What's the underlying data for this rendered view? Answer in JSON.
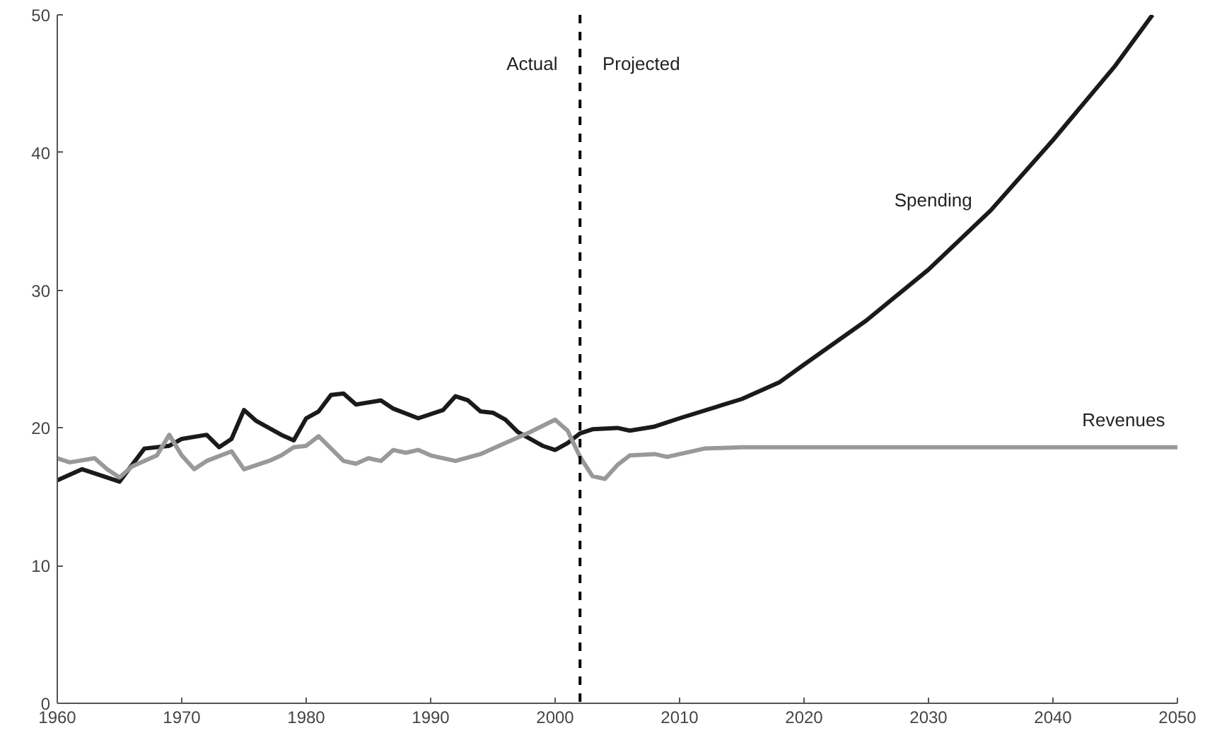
{
  "chart_data": {
    "type": "line",
    "xlim": [
      1960,
      2050
    ],
    "ylim": [
      0,
      50
    ],
    "xticks": [
      1960,
      1970,
      1980,
      1990,
      2000,
      2010,
      2020,
      2030,
      2040,
      2050
    ],
    "yticks": [
      0,
      10,
      20,
      30,
      40,
      50
    ],
    "grid": false,
    "legend": false,
    "line_style": "solid",
    "series": [
      {
        "name": "Spending",
        "color": "#1a1a1a",
        "x": [
          1960,
          1962,
          1965,
          1967,
          1969,
          1970,
          1972,
          1973,
          1974,
          1975,
          1976,
          1978,
          1979,
          1980,
          1981,
          1982,
          1983,
          1984,
          1986,
          1987,
          1989,
          1991,
          1992,
          1993,
          1994,
          1995,
          1996,
          1997,
          1998,
          1999,
          2000,
          2001,
          2002,
          2003,
          2005,
          2006,
          2008,
          2010,
          2015,
          2018,
          2020,
          2025,
          2030,
          2035,
          2040,
          2045,
          2048
        ],
        "values": [
          16.2,
          17,
          16.1,
          18.5,
          18.7,
          19.2,
          19.5,
          18.6,
          19.2,
          21.3,
          20.5,
          19.5,
          19.1,
          20.7,
          21.2,
          22.4,
          22.5,
          21.7,
          22.0,
          21.4,
          20.7,
          21.3,
          22.3,
          22.0,
          21.2,
          21.1,
          20.6,
          19.7,
          19.2,
          18.7,
          18.4,
          18.9,
          19.6,
          19.9,
          20.0,
          19.8,
          20.1,
          20.7,
          22.1,
          23.3,
          24.6,
          27.8,
          31.5,
          35.8,
          40.9,
          46.3,
          50
        ]
      },
      {
        "name": "Revenues",
        "color": "#999999",
        "x": [
          1960,
          1961,
          1963,
          1964,
          1965,
          1966,
          1968,
          1969,
          1970,
          1971,
          1972,
          1974,
          1975,
          1977,
          1978,
          1979,
          1980,
          1981,
          1982,
          1983,
          1984,
          1985,
          1986,
          1987,
          1988,
          1989,
          1990,
          1992,
          1994,
          1996,
          1998,
          2000,
          2001,
          2002,
          2003,
          2004,
          2005,
          2006,
          2008,
          2009,
          2012,
          2015,
          2050
        ],
        "values": [
          17.8,
          17.5,
          17.8,
          17.0,
          16.4,
          17.2,
          18.0,
          19.5,
          18.0,
          17.0,
          17.6,
          18.3,
          17.0,
          17.6,
          18.0,
          18.6,
          18.7,
          19.4,
          18.5,
          17.6,
          17.4,
          17.8,
          17.6,
          18.4,
          18.2,
          18.4,
          18.0,
          17.6,
          18.1,
          18.9,
          19.7,
          20.6,
          19.8,
          17.9,
          16.5,
          16.3,
          17.3,
          18.0,
          18.1,
          17.9,
          18.5,
          18.6,
          18.6
        ]
      }
    ],
    "ref_lines": [
      {
        "axis": "x",
        "value": 2002,
        "color": "#000000",
        "line_style": "dashed"
      }
    ],
    "annotations": [
      "Actual",
      "Projected"
    ]
  }
}
